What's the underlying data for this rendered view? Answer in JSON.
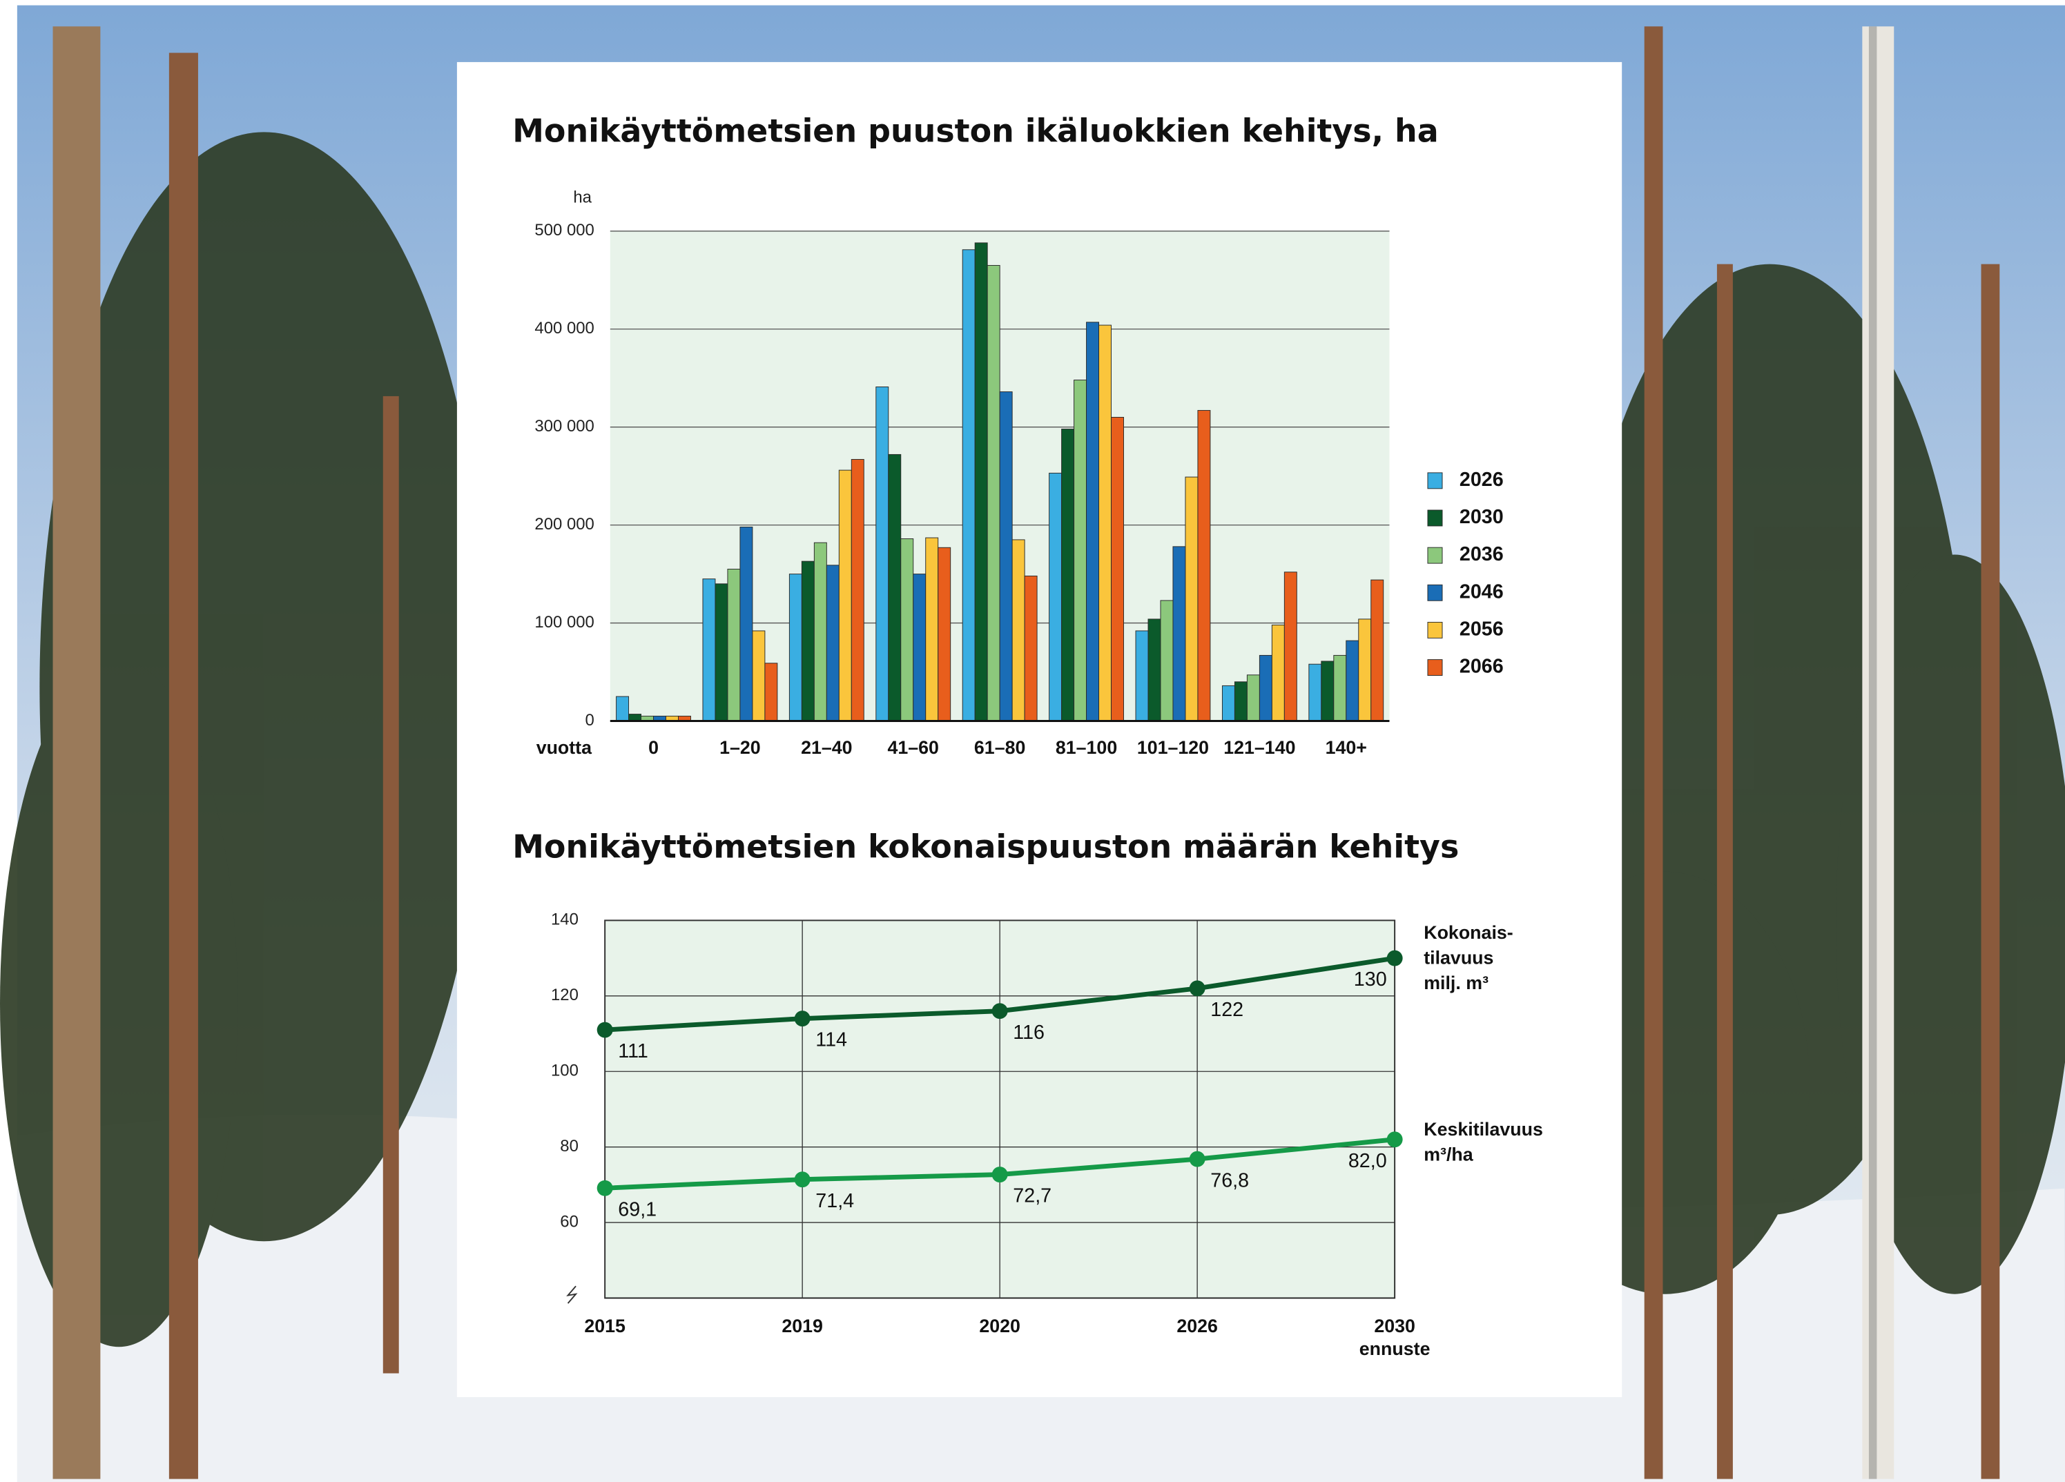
{
  "chart_data": [
    {
      "type": "bar",
      "title": "Monikäyttömetsien puuston ikäluokkien kehitys, ha",
      "y_label": "ha",
      "x_label": "vuotta",
      "categories": [
        "0",
        "1–20",
        "21–40",
        "41–60",
        "61–80",
        "81–100",
        "101–120",
        "121–140",
        "140+"
      ],
      "series": [
        {
          "name": "2026",
          "color": "#3aaee2",
          "values": [
            25000,
            145000,
            150000,
            341000,
            481000,
            253000,
            92000,
            36000,
            58000
          ]
        },
        {
          "name": "2030",
          "color": "#0b5a2b",
          "values": [
            7000,
            140000,
            163000,
            272000,
            488000,
            298000,
            104000,
            40000,
            61000
          ]
        },
        {
          "name": "2036",
          "color": "#8cc87c",
          "values": [
            5000,
            155000,
            182000,
            186000,
            465000,
            348000,
            123000,
            47000,
            67000
          ]
        },
        {
          "name": "2046",
          "color": "#1a6db6",
          "values": [
            5000,
            198000,
            159000,
            150000,
            336000,
            407000,
            178000,
            67000,
            82000
          ]
        },
        {
          "name": "2056",
          "color": "#fac53c",
          "values": [
            5000,
            92000,
            256000,
            187000,
            185000,
            404000,
            249000,
            98000,
            104000
          ]
        },
        {
          "name": "2066",
          "color": "#e85e1c",
          "values": [
            5000,
            59000,
            267000,
            177000,
            148000,
            310000,
            317000,
            152000,
            144000
          ]
        }
      ],
      "ylim": [
        0,
        500000
      ],
      "yticks": [
        0,
        {
          "value": 100000,
          "label": "100 000"
        },
        {
          "value": 200000,
          "label": "200 000"
        },
        {
          "value": 300000,
          "label": "300 000"
        },
        {
          "value": 400000,
          "label": "400 000"
        },
        {
          "value": 500000,
          "label": "500 000"
        }
      ],
      "grid": true,
      "legend": "right"
    },
    {
      "type": "line",
      "title": "Monikäyttömetsien kokonaispuuston määrän kehitys",
      "categories": [
        "2015",
        "2019",
        "2020",
        "2026",
        "2030\nennuste"
      ],
      "series": [
        {
          "name": "Kokonais-\ntilavuus\nmilj. m³",
          "color": "#0b5a2b",
          "values": [
            111,
            114,
            116,
            122,
            130
          ]
        },
        {
          "name": "Keskitilavuus\nm³/ha",
          "color": "#159a48",
          "values": [
            69.1,
            71.4,
            72.7,
            76.8,
            82.0
          ],
          "value_labels": [
            "69,1",
            "71,4",
            "72,7",
            "76,8",
            "82,0"
          ]
        }
      ],
      "ylim": [
        40,
        140
      ],
      "yticks": [
        60,
        80,
        100,
        120,
        140
      ],
      "grid": true,
      "legend": "right"
    }
  ]
}
